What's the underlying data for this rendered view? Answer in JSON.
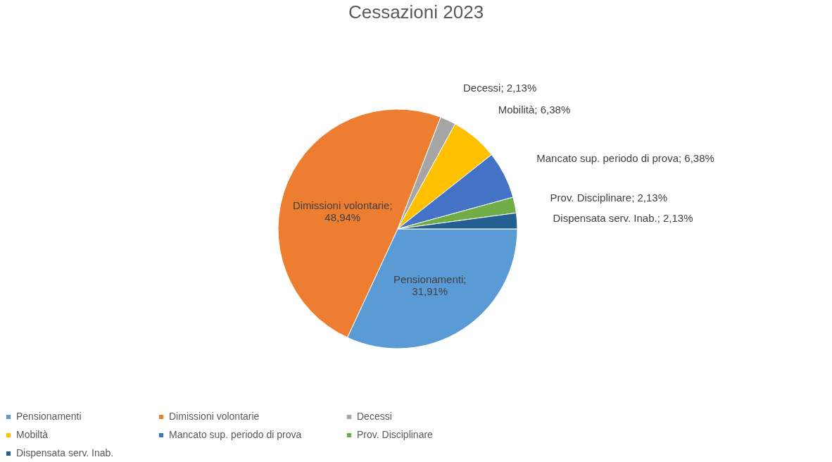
{
  "chart_data": {
    "type": "pie",
    "title": "Cessazioni 2023",
    "categories": [
      "Pensionamenti",
      "Dimissioni volontarie",
      "Decessi",
      "Mobiltà",
      "Mancato sup. periodo di prova",
      "Prov. Disciplinare",
      "Dispensata serv. Inab."
    ],
    "values": [
      31.91,
      48.94,
      2.13,
      6.38,
      6.38,
      2.13,
      2.13
    ],
    "colors": [
      "#5b9bd5",
      "#ed7d31",
      "#a5a5a5",
      "#ffc000",
      "#4472c4",
      "#70ad47",
      "#255e91"
    ],
    "value_labels": [
      "Pensionamenti; 31,91%",
      "Dimissioni volontarie; 48,94%",
      "Decessi; 2,13%",
      "Mobilità; 6,38%",
      "Mancato sup. periodo di prova; 6,38%",
      "Prov. Disciplinare; 2,13%",
      "Dispensata serv. Inab.; 2,13%"
    ],
    "legend": "bottom"
  }
}
